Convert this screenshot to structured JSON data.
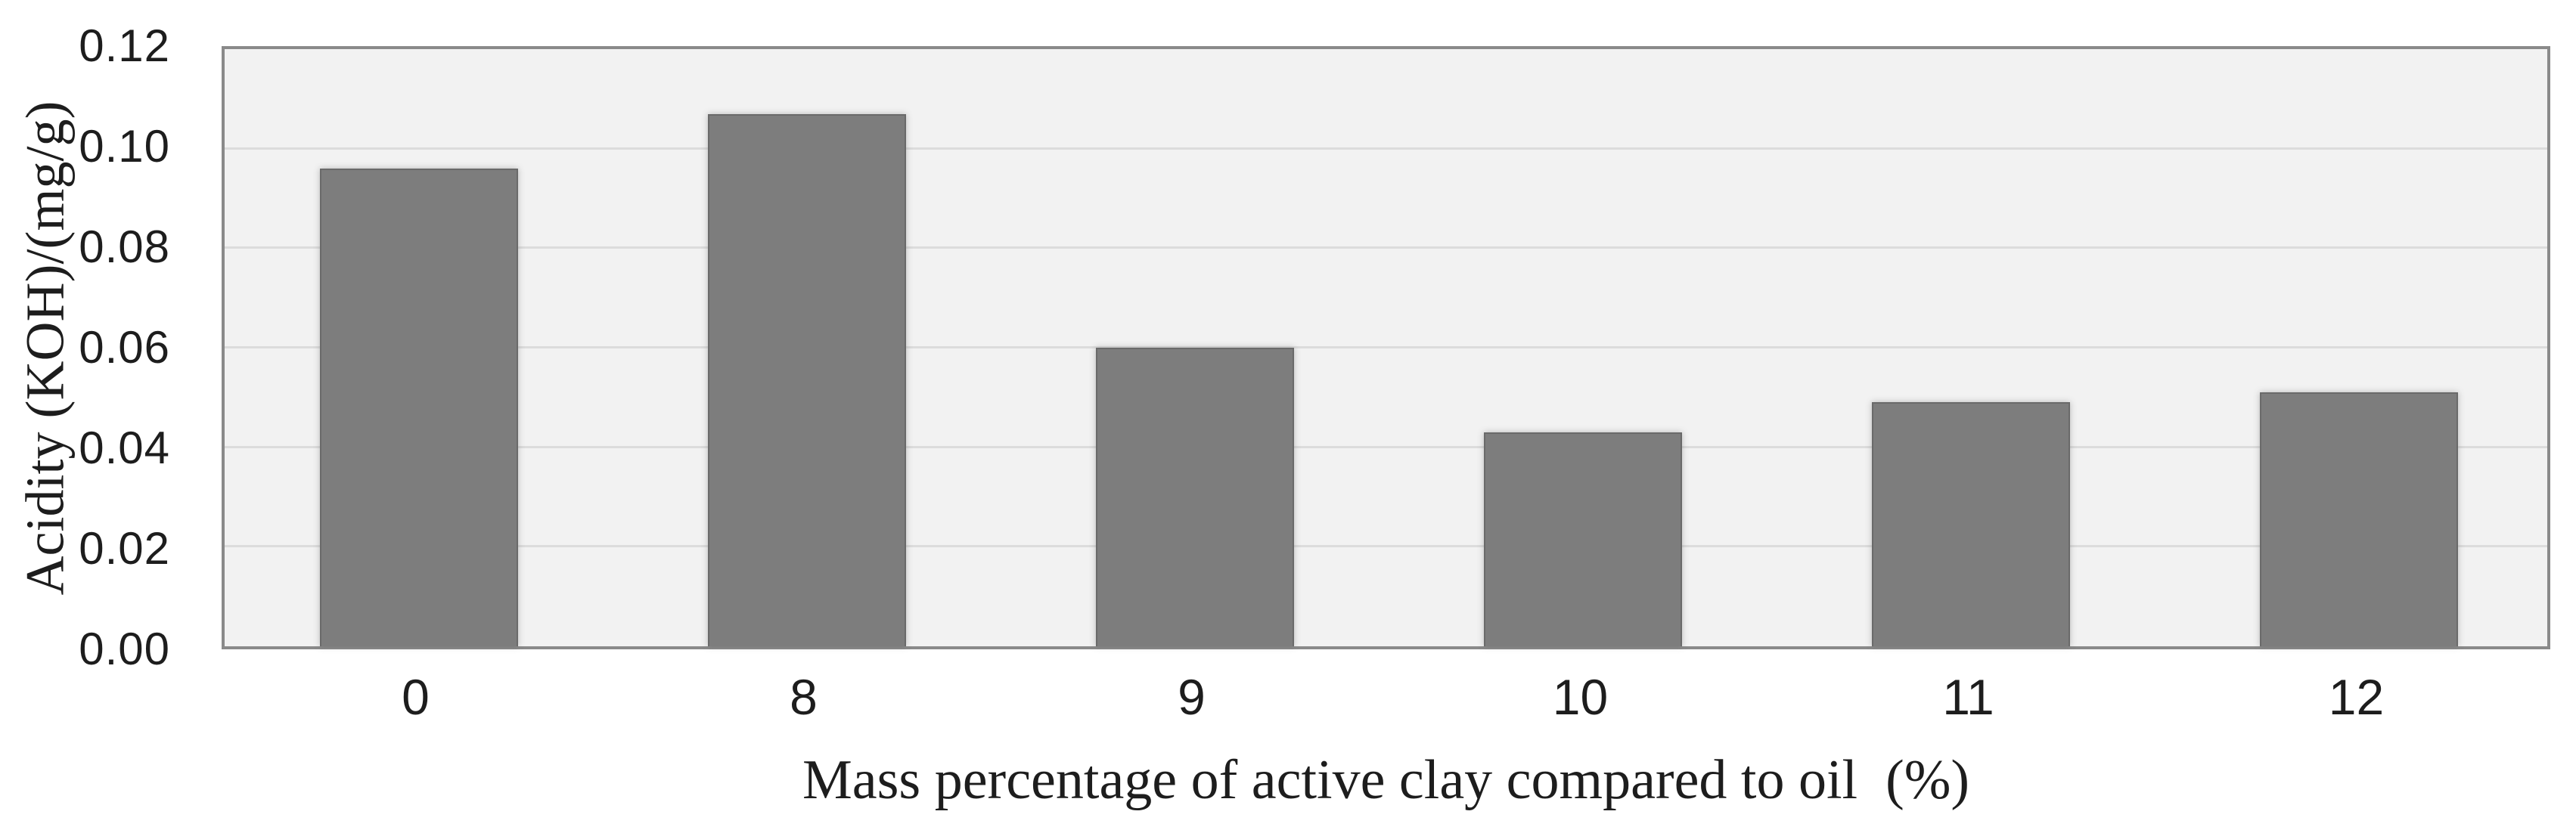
{
  "chart_data": {
    "type": "bar",
    "title": "",
    "xlabel": "Mass percentage of active clay compared to oil  (%)",
    "ylabel": "Acidity (KOH)/(mg/g)",
    "categories": [
      "0",
      "8",
      "9",
      "10",
      "11",
      "12"
    ],
    "series": [
      {
        "name": "Acidity (KOH)/(mg/g)",
        "values": [
          0.096,
          0.107,
          0.06,
          0.043,
          0.049,
          0.051
        ]
      }
    ],
    "ylim": [
      0,
      0.12
    ],
    "ytick_step": 0.02,
    "ytick_labels": [
      "0.00",
      "0.02",
      "0.04",
      "0.06",
      "0.08",
      "0.10",
      "0.12"
    ],
    "grid": "horizontal-only",
    "legend": "none",
    "bar_gap_ratio": 0.49,
    "colors": {
      "bar": "#7d7d7d",
      "bar_edge": "#6a6a6a",
      "plot_background": "#f2f2f2",
      "gridline": "#dcdcdc",
      "plot_border": "#8a8a8a",
      "text": "#1d1d1d",
      "page_background": "#ffffff"
    }
  }
}
